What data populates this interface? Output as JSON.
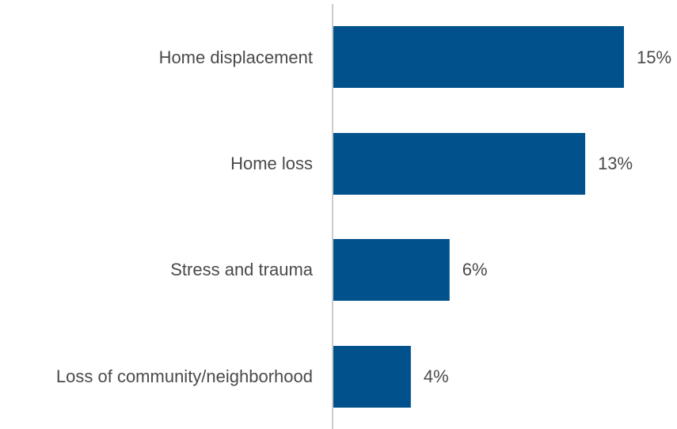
{
  "chart_data": {
    "type": "bar",
    "orientation": "horizontal",
    "categories": [
      "Home displacement",
      "Home loss",
      "Stress and trauma",
      "Loss of community/neighborhood"
    ],
    "values": [
      15,
      13,
      6,
      4
    ],
    "value_labels": [
      "15%",
      "13%",
      "6%",
      "4%"
    ],
    "unit": "%",
    "title": "",
    "xlabel": "",
    "ylabel": "",
    "grid": false,
    "legend": "none",
    "colors": {
      "bar": "#00518C",
      "axis": "#cccccc",
      "text": "#4a4a4a"
    }
  }
}
